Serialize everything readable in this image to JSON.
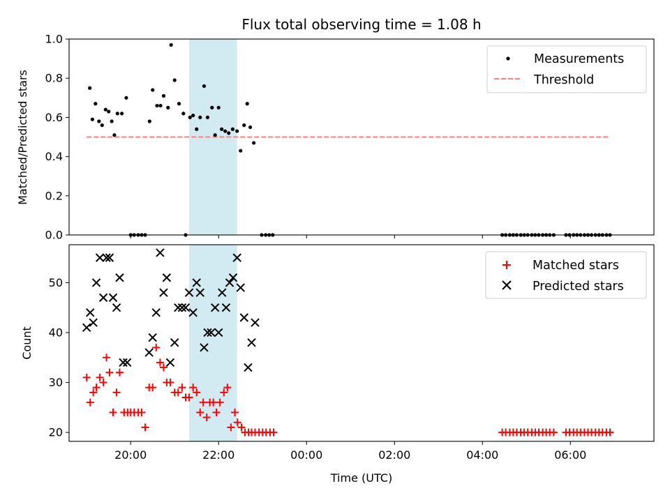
{
  "chart_data": [
    {
      "type": "scatter",
      "title": "Flux total observing time = 1.08 h",
      "ylabel": "Matched/Predicted stars",
      "ylim": [
        0,
        1.0
      ],
      "yticks": [
        0.0,
        0.2,
        0.4,
        0.6,
        0.8,
        1.0
      ],
      "ytick_labels": [
        "0.0",
        "0.2",
        "0.4",
        "0.6",
        "0.8",
        "1.0"
      ],
      "xlim_hours": [
        18.6,
        31.9
      ],
      "xticks_hours": [
        20,
        22,
        24,
        26,
        28,
        30
      ],
      "show_xtick_labels": false,
      "shaded_region_hours": [
        21.33,
        22.42
      ],
      "threshold": {
        "value": 0.5,
        "x_range_hours": [
          19.0,
          30.9
        ],
        "color": "#ff7f7f"
      },
      "legend": {
        "position": "upper right",
        "entries": [
          "Measurements",
          "Threshold"
        ]
      },
      "series": [
        {
          "name": "Measurements",
          "marker": "dot",
          "color": "#000000",
          "x_hours": [
            19.07,
            19.13,
            19.2,
            19.28,
            19.35,
            19.43,
            19.5,
            19.57,
            19.63,
            19.7,
            19.8,
            19.9,
            20.43,
            20.5,
            20.6,
            20.68,
            20.75,
            20.85,
            20.92,
            21.0,
            21.1,
            21.2,
            21.35,
            21.42,
            21.5,
            21.58,
            21.67,
            21.75,
            21.85,
            21.92,
            22.0,
            22.07,
            22.15,
            22.23,
            22.32,
            22.42,
            22.5,
            22.58,
            22.65,
            22.72,
            22.8,
            20.0,
            20.08,
            20.17,
            20.25,
            20.33,
            21.25,
            22.98,
            23.07,
            23.15,
            23.23,
            28.45,
            28.53,
            28.62,
            28.7,
            28.78,
            28.87,
            28.95,
            29.03,
            29.12,
            29.2,
            29.28,
            29.37,
            29.45,
            29.53,
            29.62,
            29.9,
            29.98,
            30.07,
            30.15,
            30.23,
            30.32,
            30.4,
            30.48,
            30.57,
            30.65,
            30.73,
            30.82,
            30.9
          ],
          "y": [
            0.75,
            0.59,
            0.67,
            0.58,
            0.56,
            0.64,
            0.63,
            0.58,
            0.51,
            0.62,
            0.62,
            0.7,
            0.58,
            0.74,
            0.66,
            0.66,
            0.71,
            0.65,
            0.97,
            0.79,
            0.67,
            0.62,
            0.6,
            0.61,
            0.54,
            0.6,
            0.76,
            0.6,
            0.65,
            0.51,
            0.65,
            0.54,
            0.53,
            0.52,
            0.54,
            0.53,
            0.43,
            0.56,
            0.67,
            0.55,
            0.47,
            0.0,
            0.0,
            0.0,
            0.0,
            0.0,
            0.0,
            0.0,
            0.0,
            0.0,
            0.0,
            0.0,
            0.0,
            0.0,
            0.0,
            0.0,
            0.0,
            0.0,
            0.0,
            0.0,
            0.0,
            0.0,
            0.0,
            0.0,
            0.0,
            0.0,
            0.0,
            0.0,
            0.0,
            0.0,
            0.0,
            0.0,
            0.0,
            0.0,
            0.0,
            0.0,
            0.0,
            0.0,
            0.0
          ]
        }
      ]
    },
    {
      "type": "scatter",
      "xlabel": "Time (UTC)",
      "ylabel": "Count",
      "ylim": [
        18.2,
        57.6
      ],
      "yticks": [
        20,
        30,
        40,
        50
      ],
      "ytick_labels": [
        "20",
        "30",
        "40",
        "50"
      ],
      "xlim_hours": [
        18.6,
        31.9
      ],
      "xticks_hours": [
        20,
        22,
        24,
        26,
        28,
        30
      ],
      "xtick_labels": [
        "20:00",
        "22:00",
        "00:00",
        "02:00",
        "04:00",
        "06:00"
      ],
      "shaded_region_hours": [
        21.33,
        22.42
      ],
      "legend": {
        "position": "upper right",
        "entries": [
          "Matched stars",
          "Predicted stars"
        ]
      },
      "series": [
        {
          "name": "Matched stars",
          "marker": "plus",
          "color": "#ff0000",
          "x_hours": [
            19.0,
            19.08,
            19.15,
            19.22,
            19.3,
            19.38,
            19.45,
            19.52,
            19.6,
            19.68,
            19.75,
            19.85,
            19.93,
            20.0,
            20.08,
            20.17,
            20.25,
            20.33,
            20.42,
            20.5,
            20.58,
            20.67,
            20.75,
            20.82,
            20.9,
            21.0,
            21.08,
            21.17,
            21.25,
            21.33,
            21.42,
            21.5,
            21.58,
            21.65,
            21.73,
            21.8,
            21.88,
            21.95,
            22.03,
            22.12,
            22.2,
            22.28,
            22.37,
            22.43,
            22.52,
            22.6,
            22.68,
            22.75,
            22.83,
            22.92,
            23.0,
            23.08,
            23.17,
            23.25,
            28.45,
            28.53,
            28.62,
            28.7,
            28.78,
            28.87,
            28.95,
            29.03,
            29.12,
            29.2,
            29.28,
            29.37,
            29.45,
            29.53,
            29.62,
            29.9,
            29.98,
            30.07,
            30.15,
            30.23,
            30.32,
            30.4,
            30.48,
            30.57,
            30.65,
            30.73,
            30.82,
            30.9
          ],
          "y": [
            31,
            26,
            28,
            29,
            31,
            30,
            35,
            32,
            24,
            28,
            32,
            24,
            24,
            24,
            24,
            24,
            24,
            21,
            29,
            29,
            37,
            34,
            33,
            30,
            30,
            28,
            28,
            29,
            27,
            27,
            29,
            28,
            24,
            26,
            23,
            26,
            26,
            24,
            26,
            28,
            29,
            21,
            24,
            22,
            21,
            20,
            20,
            20,
            20,
            20,
            20,
            20,
            20,
            20,
            20,
            20,
            20,
            20,
            20,
            20,
            20,
            20,
            20,
            20,
            20,
            20,
            20,
            20,
            20,
            20,
            20,
            20,
            20,
            20,
            20,
            20,
            20,
            20,
            20,
            20,
            20,
            20
          ]
        },
        {
          "name": "Predicted stars",
          "marker": "x",
          "color": "#000000",
          "x_hours": [
            19.0,
            19.08,
            19.15,
            19.22,
            19.3,
            19.38,
            19.45,
            19.52,
            19.6,
            19.68,
            19.75,
            19.83,
            19.92,
            20.42,
            20.5,
            20.58,
            20.67,
            20.75,
            20.82,
            20.9,
            21.0,
            21.08,
            21.17,
            21.25,
            21.33,
            21.42,
            21.5,
            21.58,
            21.67,
            21.75,
            21.83,
            21.92,
            22.0,
            22.08,
            22.17,
            22.25,
            22.33,
            22.42,
            22.5,
            22.58,
            22.67,
            22.75,
            22.83
          ],
          "y": [
            41,
            44,
            42,
            50,
            55,
            47,
            55,
            55,
            47,
            45,
            51,
            34,
            34,
            36,
            39,
            44,
            56,
            48,
            51,
            34,
            38,
            45,
            45,
            45,
            48,
            44,
            50,
            48,
            37,
            40,
            40,
            45,
            40,
            48,
            45,
            50,
            51,
            55,
            49,
            43,
            33,
            38,
            42
          ]
        }
      ]
    }
  ]
}
